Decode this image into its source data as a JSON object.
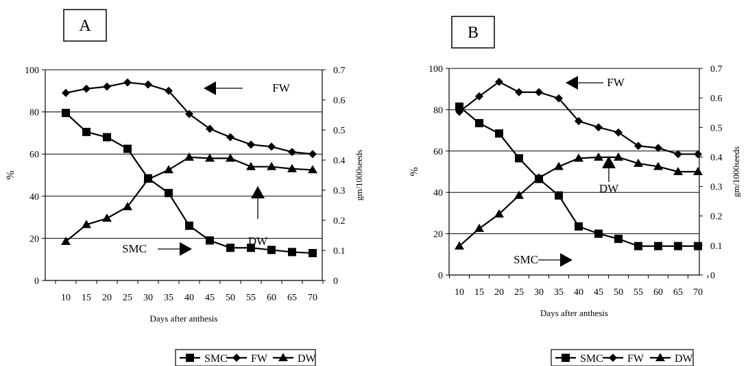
{
  "chart_data": [
    {
      "panel_label": "A",
      "type": "line",
      "x": [
        10,
        15,
        20,
        25,
        30,
        35,
        40,
        45,
        50,
        55,
        60,
        65,
        70
      ],
      "xlabel": "Days after anthesis",
      "ylabel": "%",
      "y2label": "gm/1000seeds",
      "ylim": [
        0,
        100
      ],
      "y2lim": [
        0,
        0.7
      ],
      "yticks": [
        0,
        20,
        40,
        60,
        80,
        100
      ],
      "y2ticks": [
        0,
        0.1,
        0.2,
        0.3,
        0.4,
        0.5,
        0.6,
        0.7
      ],
      "y2tick_labels": [
        "0",
        "0.1",
        "0.2",
        "0.3",
        "0.4",
        "0.5",
        "0.6",
        "0.7"
      ],
      "grid": "horizontal",
      "legend_position": "bottom",
      "series": [
        {
          "name": "SMC",
          "marker": "square",
          "axis": "left",
          "values": [
            79.5,
            70.5,
            68,
            62.5,
            48.5,
            41.5,
            26,
            19,
            15.5,
            15.5,
            14.5,
            13.5,
            13
          ]
        },
        {
          "name": "FW",
          "marker": "diamond",
          "axis": "left",
          "values": [
            89,
            91,
            92,
            94,
            93,
            90,
            79,
            72,
            68,
            64.5,
            63.5,
            61,
            60
          ]
        },
        {
          "name": "DW",
          "marker": "triangle",
          "axis": "left",
          "values": [
            18.5,
            26.5,
            29.5,
            35,
            48,
            52.5,
            58.5,
            58,
            58,
            54,
            54,
            53,
            52.5
          ]
        }
      ],
      "annotations": [
        {
          "text": "FW",
          "series": "FW"
        },
        {
          "text": "DW",
          "series": "DW"
        },
        {
          "text": "SMC",
          "series": "SMC"
        }
      ]
    },
    {
      "panel_label": "B",
      "type": "line",
      "x": [
        10,
        15,
        20,
        25,
        30,
        35,
        40,
        45,
        50,
        55,
        60,
        65,
        70
      ],
      "xlabel": "Days after anthesis",
      "ylabel": "%",
      "y2label": "gm/1000seeds",
      "ylim": [
        0,
        100
      ],
      "y2lim": [
        0,
        0.7
      ],
      "yticks": [
        0,
        20,
        40,
        60,
        80,
        100
      ],
      "y2ticks": [
        0,
        0.1,
        0.2,
        0.3,
        0.4,
        0.5,
        0.6,
        0.7
      ],
      "y2tick_labels": [
        "0",
        "0.1",
        "0.2",
        "0.3",
        "0.4",
        "0.5",
        "0.6",
        "0.7"
      ],
      "grid": "horizontal",
      "legend_position": "bottom",
      "series": [
        {
          "name": "SMC",
          "marker": "square",
          "axis": "left",
          "values": [
            81.5,
            73.5,
            68.5,
            56.5,
            46.5,
            38.5,
            23.5,
            20,
            17.5,
            14,
            14,
            14,
            14
          ]
        },
        {
          "name": "FW",
          "marker": "diamond",
          "axis": "left",
          "values": [
            79,
            86.5,
            93.5,
            88.5,
            88.5,
            85.5,
            74.5,
            71.5,
            69,
            62.5,
            61.5,
            58.5,
            58.5
          ]
        },
        {
          "name": "DW",
          "marker": "triangle",
          "axis": "left",
          "values": [
            14,
            22.5,
            29.5,
            38.5,
            47,
            52.5,
            56.5,
            57,
            57,
            54,
            52.5,
            50,
            50
          ]
        }
      ],
      "annotations": [
        {
          "text": "FW",
          "series": "FW"
        },
        {
          "text": "DW",
          "series": "DW"
        },
        {
          "text": "SMC",
          "series": "SMC"
        }
      ]
    }
  ]
}
